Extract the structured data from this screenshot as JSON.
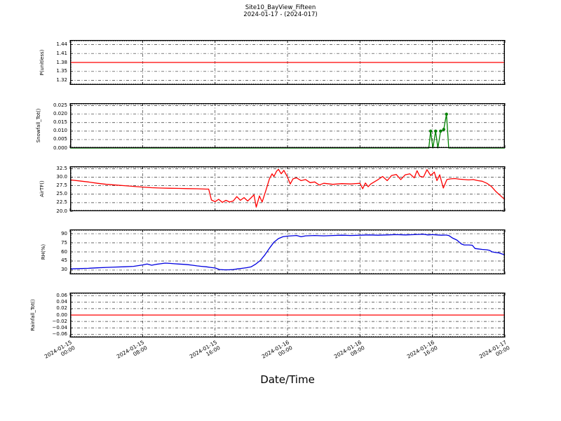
{
  "title": {
    "line1": "Site10_BayView_Fifteen",
    "line2": "2024-01-17 - (2024-017)"
  },
  "xlabel": "Date/Time",
  "colors": {
    "red": "#ff0000",
    "green": "#008000",
    "blue": "#0000e0",
    "grid": "#333333",
    "frame": "#000000"
  },
  "x_axis": {
    "range_hours": [
      0,
      48
    ],
    "major_tick_hours": [
      0,
      8,
      16,
      24,
      32,
      40,
      48
    ],
    "minor_tick_step_hours": 0.25,
    "tick_labels": [
      [
        "2024-01-15",
        "00:00"
      ],
      [
        "2024-01-15",
        "08:00"
      ],
      [
        "2024-01-15",
        "16:00"
      ],
      [
        "2024-01-16",
        "00:00"
      ],
      [
        "2024-01-16",
        "08:00"
      ],
      [
        "2024-01-16",
        "16:00"
      ],
      [
        "2024-01-17",
        "00:00"
      ]
    ]
  },
  "chart_data": [
    {
      "type": "line",
      "name": "p",
      "ylabel": "P(unitless)",
      "color": "red",
      "ylim": [
        1.305,
        1.455
      ],
      "ytick_values": [
        1.44,
        1.41,
        1.38,
        1.35,
        1.32
      ],
      "ytick_labels": [
        "1.44",
        "1.41",
        "1.38",
        "1.35",
        "1.32"
      ],
      "minor_step": 0.006,
      "x_hours": [
        0,
        48
      ],
      "values": [
        1.38,
        1.38
      ],
      "marker_points": []
    },
    {
      "type": "line",
      "name": "snowfall-tot",
      "ylabel": "Snowfall_Tot()",
      "color": "green",
      "ylim": [
        0,
        0.0265
      ],
      "ytick_values": [
        0.025,
        0.02,
        0.015,
        0.01,
        0.005,
        0
      ],
      "ytick_labels": [
        "0.025",
        "0.020",
        "0.015",
        "0.010",
        "0.005",
        "0.000"
      ],
      "minor_step": 0.001,
      "x_hours": [
        0,
        39.6,
        39.8,
        40.05,
        40.35,
        40.6,
        40.9,
        41.25,
        41.55,
        41.8,
        48
      ],
      "values": [
        0,
        0,
        0.01,
        0,
        0.01,
        0,
        0.01,
        0.011,
        0.02,
        0,
        0
      ],
      "marker_points": [
        [
          39.8,
          0.01
        ],
        [
          40.35,
          0.01
        ],
        [
          40.9,
          0.01
        ],
        [
          41.25,
          0.011
        ],
        [
          41.55,
          0.02
        ]
      ]
    },
    {
      "type": "line",
      "name": "airtf",
      "ylabel": "AirTF()",
      "color": "red",
      "ylim": [
        20,
        33.2
      ],
      "ytick_values": [
        32.5,
        30,
        27.5,
        25,
        22.5,
        20
      ],
      "ytick_labels": [
        "32.5",
        "30.0",
        "27.5",
        "25.0",
        "22.5",
        "20.0"
      ],
      "minor_step": 0.5,
      "x_hours": [
        0,
        1,
        2,
        3,
        4,
        5,
        6,
        7,
        8,
        9,
        10,
        11,
        12,
        13,
        14,
        15,
        15.3,
        15.6,
        16,
        16.4,
        16.8,
        17.2,
        17.6,
        18,
        18.4,
        18.8,
        19.2,
        19.6,
        20,
        20.3,
        20.55,
        20.9,
        21.2,
        21.6,
        22,
        22.3,
        22.5,
        22.8,
        23,
        23.3,
        23.6,
        24,
        24.3,
        24.6,
        25,
        25.5,
        26,
        26.5,
        27,
        27.5,
        28,
        29,
        30,
        31,
        32,
        32.3,
        32.6,
        32.9,
        33.2,
        34,
        34.5,
        35,
        35.5,
        36,
        36.5,
        37,
        37.5,
        38,
        38.3,
        38.6,
        39,
        39.4,
        39.8,
        40.2,
        40.5,
        40.8,
        41.2,
        41.6,
        42,
        42.5,
        43,
        43.5,
        44,
        44.5,
        45,
        45.5,
        46,
        46.5,
        47,
        47.5,
        48
      ],
      "values": [
        29.2,
        28.9,
        28.6,
        28.2,
        27.9,
        27.7,
        27.5,
        27.3,
        27.1,
        26.9,
        26.8,
        26.75,
        26.7,
        26.65,
        26.6,
        26.5,
        26.5,
        23.3,
        22.8,
        23.5,
        22.6,
        23.2,
        22.7,
        23.0,
        24.3,
        23.2,
        24.0,
        23.0,
        24.0,
        24.8,
        21.2,
        24.5,
        22.7,
        26.0,
        29.5,
        31.0,
        30.2,
        31.8,
        32.3,
        31.0,
        32.0,
        30.0,
        28.0,
        29.5,
        29.8,
        29.0,
        29.3,
        28.4,
        28.6,
        27.7,
        28.2,
        27.9,
        28.1,
        28.0,
        28.2,
        26.6,
        28.3,
        27.2,
        28.0,
        29.3,
        30.2,
        29.0,
        30.5,
        30.8,
        29.3,
        30.7,
        31.0,
        29.8,
        31.9,
        30.3,
        30.0,
        32.2,
        30.5,
        31.5,
        29.0,
        30.7,
        26.8,
        29.3,
        29.5,
        29.6,
        29.4,
        29.3,
        29.2,
        29.3,
        29.0,
        28.8,
        28.2,
        27.3,
        25.8,
        24.6,
        23.4
      ],
      "marker_points": []
    },
    {
      "type": "line",
      "name": "rh",
      "ylabel": "RH(%)",
      "color": "blue",
      "ylim": [
        23,
        97
      ],
      "ytick_values": [
        90,
        75,
        60,
        45,
        30
      ],
      "ytick_labels": [
        "90",
        "75",
        "60",
        "45",
        "30"
      ],
      "minor_step": 3,
      "x_hours": [
        0,
        1,
        2,
        3,
        4,
        5,
        6,
        7,
        8,
        8.5,
        9,
        9.5,
        10,
        10.5,
        11,
        11.5,
        12,
        12.5,
        13,
        13.5,
        14,
        14.5,
        15,
        15.5,
        16,
        16.5,
        17,
        17.5,
        18,
        18.5,
        19,
        19.5,
        20,
        20.5,
        21,
        21.5,
        22,
        22.5,
        23,
        23.5,
        24,
        25,
        25.5,
        26,
        27,
        28,
        29,
        30,
        31,
        32,
        33,
        34,
        35,
        36,
        37,
        38,
        39,
        39.5,
        40,
        40.5,
        41,
        41.5,
        41.8,
        42.2,
        42.7,
        43.2,
        43.5,
        44,
        44.4,
        44.7,
        45,
        45.5,
        46,
        46.3,
        46.6,
        47,
        47.3,
        47.7,
        48
      ],
      "values": [
        32,
        32.5,
        33,
        33.8,
        34.5,
        35,
        35.5,
        36.2,
        38.5,
        40,
        38,
        39.5,
        40.5,
        41.5,
        41,
        40.5,
        40,
        39.5,
        39,
        38,
        37,
        36.2,
        35.5,
        34.5,
        33.5,
        31,
        30.5,
        30.5,
        31,
        32,
        33,
        34,
        35.5,
        40,
        46,
        55,
        66,
        76,
        82,
        85,
        86,
        87,
        85,
        86.5,
        87,
        86.5,
        87,
        87.5,
        87,
        87.5,
        88,
        87.5,
        88,
        88.5,
        88,
        88.5,
        89,
        88,
        88.5,
        88,
        87.5,
        87.8,
        87,
        83,
        79.5,
        73,
        71.5,
        71.5,
        71,
        65.5,
        65,
        64,
        63.5,
        62.5,
        60,
        59,
        58.5,
        56.5,
        55
      ],
      "marker_points": []
    },
    {
      "type": "line",
      "name": "rainfall-tot",
      "ylabel": "Rainfall_Tot()",
      "color": "red",
      "ylim": [
        -0.07,
        0.07
      ],
      "ytick_values": [
        0.06,
        0.04,
        0.02,
        0,
        -0.02,
        -0.04,
        -0.06
      ],
      "ytick_labels": [
        "0.06",
        "0.04",
        "0.02",
        "0.00",
        "−0.02",
        "−0.04",
        "−0.06"
      ],
      "minor_step": 0.004,
      "x_hours": [
        0,
        48
      ],
      "values": [
        0,
        0
      ],
      "marker_points": []
    }
  ]
}
